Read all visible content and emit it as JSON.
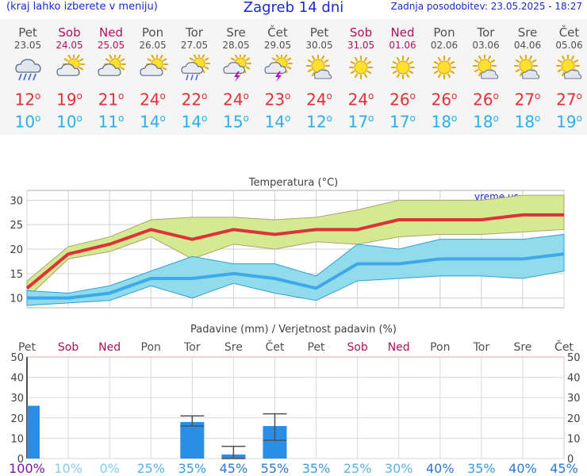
{
  "header": {
    "menu_hint": "(kraj lahko izberete v meniju)",
    "title": "Zagreb 14 dni",
    "last_update": "Zadnja posodobitev: 23.05.2025 - 18:27"
  },
  "days": [
    {
      "name": "Pet",
      "date": "23.05",
      "weekend": false,
      "icon": "rain-cloud-icon",
      "tmax": "12",
      "tmin": "10"
    },
    {
      "name": "Sob",
      "date": "24.05",
      "weekend": true,
      "icon": "partly-cloudy-icon",
      "tmax": "19",
      "tmin": "10"
    },
    {
      "name": "Ned",
      "date": "25.05",
      "weekend": true,
      "icon": "partly-cloudy-icon",
      "tmax": "21",
      "tmin": "11"
    },
    {
      "name": "Pon",
      "date": "26.05",
      "weekend": false,
      "icon": "partly-cloudy-icon",
      "tmax": "24",
      "tmin": "14"
    },
    {
      "name": "Tor",
      "date": "27.05",
      "weekend": false,
      "icon": "sun-cloud-rain-icon",
      "tmax": "22",
      "tmin": "14"
    },
    {
      "name": "Sre",
      "date": "28.05",
      "weekend": false,
      "icon": "thunderstorm-icon",
      "tmax": "24",
      "tmin": "15"
    },
    {
      "name": "Čet",
      "date": "29.05",
      "weekend": false,
      "icon": "thunderstorm-icon",
      "tmax": "23",
      "tmin": "14"
    },
    {
      "name": "Pet",
      "date": "30.05",
      "weekend": false,
      "icon": "sun-behind-cloud-icon",
      "tmax": "24",
      "tmin": "12"
    },
    {
      "name": "Sob",
      "date": "31.05",
      "weekend": true,
      "icon": "sun-icon",
      "tmax": "24",
      "tmin": "17"
    },
    {
      "name": "Ned",
      "date": "01.06",
      "weekend": true,
      "icon": "sun-icon",
      "tmax": "26",
      "tmin": "17"
    },
    {
      "name": "Pon",
      "date": "02.06",
      "weekend": false,
      "icon": "sun-icon",
      "tmax": "26",
      "tmin": "18"
    },
    {
      "name": "Tor",
      "date": "03.06",
      "weekend": false,
      "icon": "sun-behind-cloud-icon",
      "tmax": "26",
      "tmin": "18"
    },
    {
      "name": "Sre",
      "date": "04.06",
      "weekend": false,
      "icon": "sun-behind-cloud-icon",
      "tmax": "27",
      "tmin": "18"
    },
    {
      "name": "Čet",
      "date": "05.06",
      "weekend": false,
      "icon": "sun-behind-cloud-icon",
      "tmax": "27",
      "tmin": "19"
    }
  ],
  "degree_symbol": "o",
  "colors": {
    "tmax": "#e0303a",
    "tmin": "#2ab0e8",
    "weekend": "#b0105a",
    "brand": "#1a2bd0",
    "tmax_band": "#d4ea90",
    "tmin_band": "#90dcec",
    "tmin_line": "#40a8e8",
    "bar": "#2a8ee6"
  },
  "chart_data": [
    {
      "type": "line",
      "title": "Temperatura (°C)",
      "watermark": "vreme.us",
      "categories": [
        "23.05",
        "24.05",
        "25.05",
        "26.05",
        "27.05",
        "28.05",
        "29.05",
        "30.05",
        "31.05",
        "01.06",
        "02.06",
        "03.06",
        "04.06",
        "05.06"
      ],
      "ylim": [
        8,
        32
      ],
      "yticks": [
        10,
        15,
        20,
        25,
        30
      ],
      "grid": true,
      "series": [
        {
          "values": [
            12,
            19,
            21,
            24,
            22,
            24,
            23,
            24,
            24,
            26,
            26,
            26,
            27,
            27
          ],
          "upper": [
            13.5,
            20.5,
            22.5,
            26,
            26.5,
            26.5,
            26,
            26.5,
            28,
            30,
            30,
            30,
            31,
            31
          ],
          "lower": [
            10,
            18,
            19.5,
            22.5,
            18,
            21,
            20,
            21.5,
            21,
            22.5,
            23,
            23,
            23.5,
            24
          ]
        },
        {
          "values": [
            10,
            10,
            11,
            14,
            14,
            15,
            14,
            12,
            17,
            17,
            18,
            18,
            18,
            19
          ],
          "upper": [
            11.5,
            11,
            12.5,
            15.5,
            18.5,
            17,
            17,
            14.5,
            21,
            20,
            22,
            22,
            22,
            23
          ],
          "lower": [
            8.5,
            9,
            9.5,
            12.5,
            10,
            13,
            11,
            9.5,
            13.5,
            14,
            14.5,
            14.5,
            14,
            15.5
          ]
        }
      ]
    },
    {
      "type": "bar",
      "title": "Padavine (mm) / Verjetnost padavin (%)",
      "categories": [
        "Pet",
        "Sob",
        "Ned",
        "Pon",
        "Tor",
        "Sre",
        "Čet",
        "Pet",
        "Sob",
        "Ned",
        "Pon",
        "Tor",
        "Sre",
        "Čet"
      ],
      "values": [
        26,
        0,
        0,
        0,
        18,
        2,
        16,
        0,
        0,
        0,
        0,
        0,
        0,
        0
      ],
      "error_high": [
        null,
        null,
        null,
        null,
        21,
        6,
        22,
        null,
        null,
        null,
        null,
        null,
        null,
        null
      ],
      "error_low": [
        null,
        null,
        null,
        null,
        16,
        0,
        9,
        null,
        null,
        null,
        null,
        null,
        null,
        null
      ],
      "probability_labels": [
        "100%",
        "10%",
        "0%",
        "25%",
        "35%",
        "45%",
        "55%",
        "35%",
        "25%",
        "30%",
        "40%",
        "35%",
        "40%",
        "45%"
      ],
      "ylim": [
        0,
        50
      ],
      "yticks": [
        0,
        10,
        20,
        30,
        40,
        50
      ],
      "grid": true
    }
  ]
}
